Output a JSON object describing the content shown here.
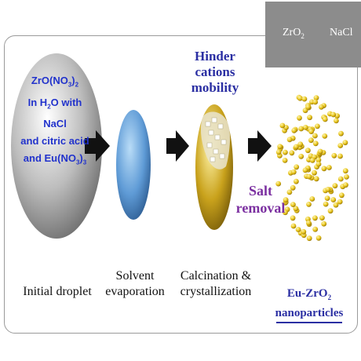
{
  "legend": {
    "zro2_label": "ZrO",
    "zro2_sub": "2",
    "nacl_label": "NaCl",
    "colors": {
      "zro2": "#e6c21a",
      "nacl": "#e8e8e8",
      "background": "#8c8c8c"
    }
  },
  "droplet": {
    "line1": "ZrO(NO",
    "line1_sub": "3",
    "line1_end": ")",
    "line1_sub2": "2",
    "line2": "In H",
    "line2_sub": "2",
    "line2_end": "O with NaCl",
    "line3": "and citric acid",
    "line4": "and Eu(NO",
    "line4_sub": "3",
    "line4_end": ")",
    "line4_sub2": "3"
  },
  "steps": {
    "initial": "Initial droplet",
    "solvent_1": "Solvent",
    "solvent_2": "evaporation",
    "calc_1": "Calcination &",
    "calc_2": "crystallization",
    "product_1": "Eu-ZrO",
    "product_sub": "2",
    "product_2": "nanoparticles"
  },
  "annotations": {
    "hinder_1": "Hinder cations",
    "hinder_2": "mobility",
    "salt_1": "Salt",
    "salt_2": "removal"
  },
  "colors": {
    "droplet": "#b9b9b9",
    "evaporated": "#5f9bd6",
    "calcined": "#c9a21c",
    "particle": "#e6c21a",
    "title_blue": "#2b2fa3",
    "salt_purple": "#7b2fa0"
  }
}
